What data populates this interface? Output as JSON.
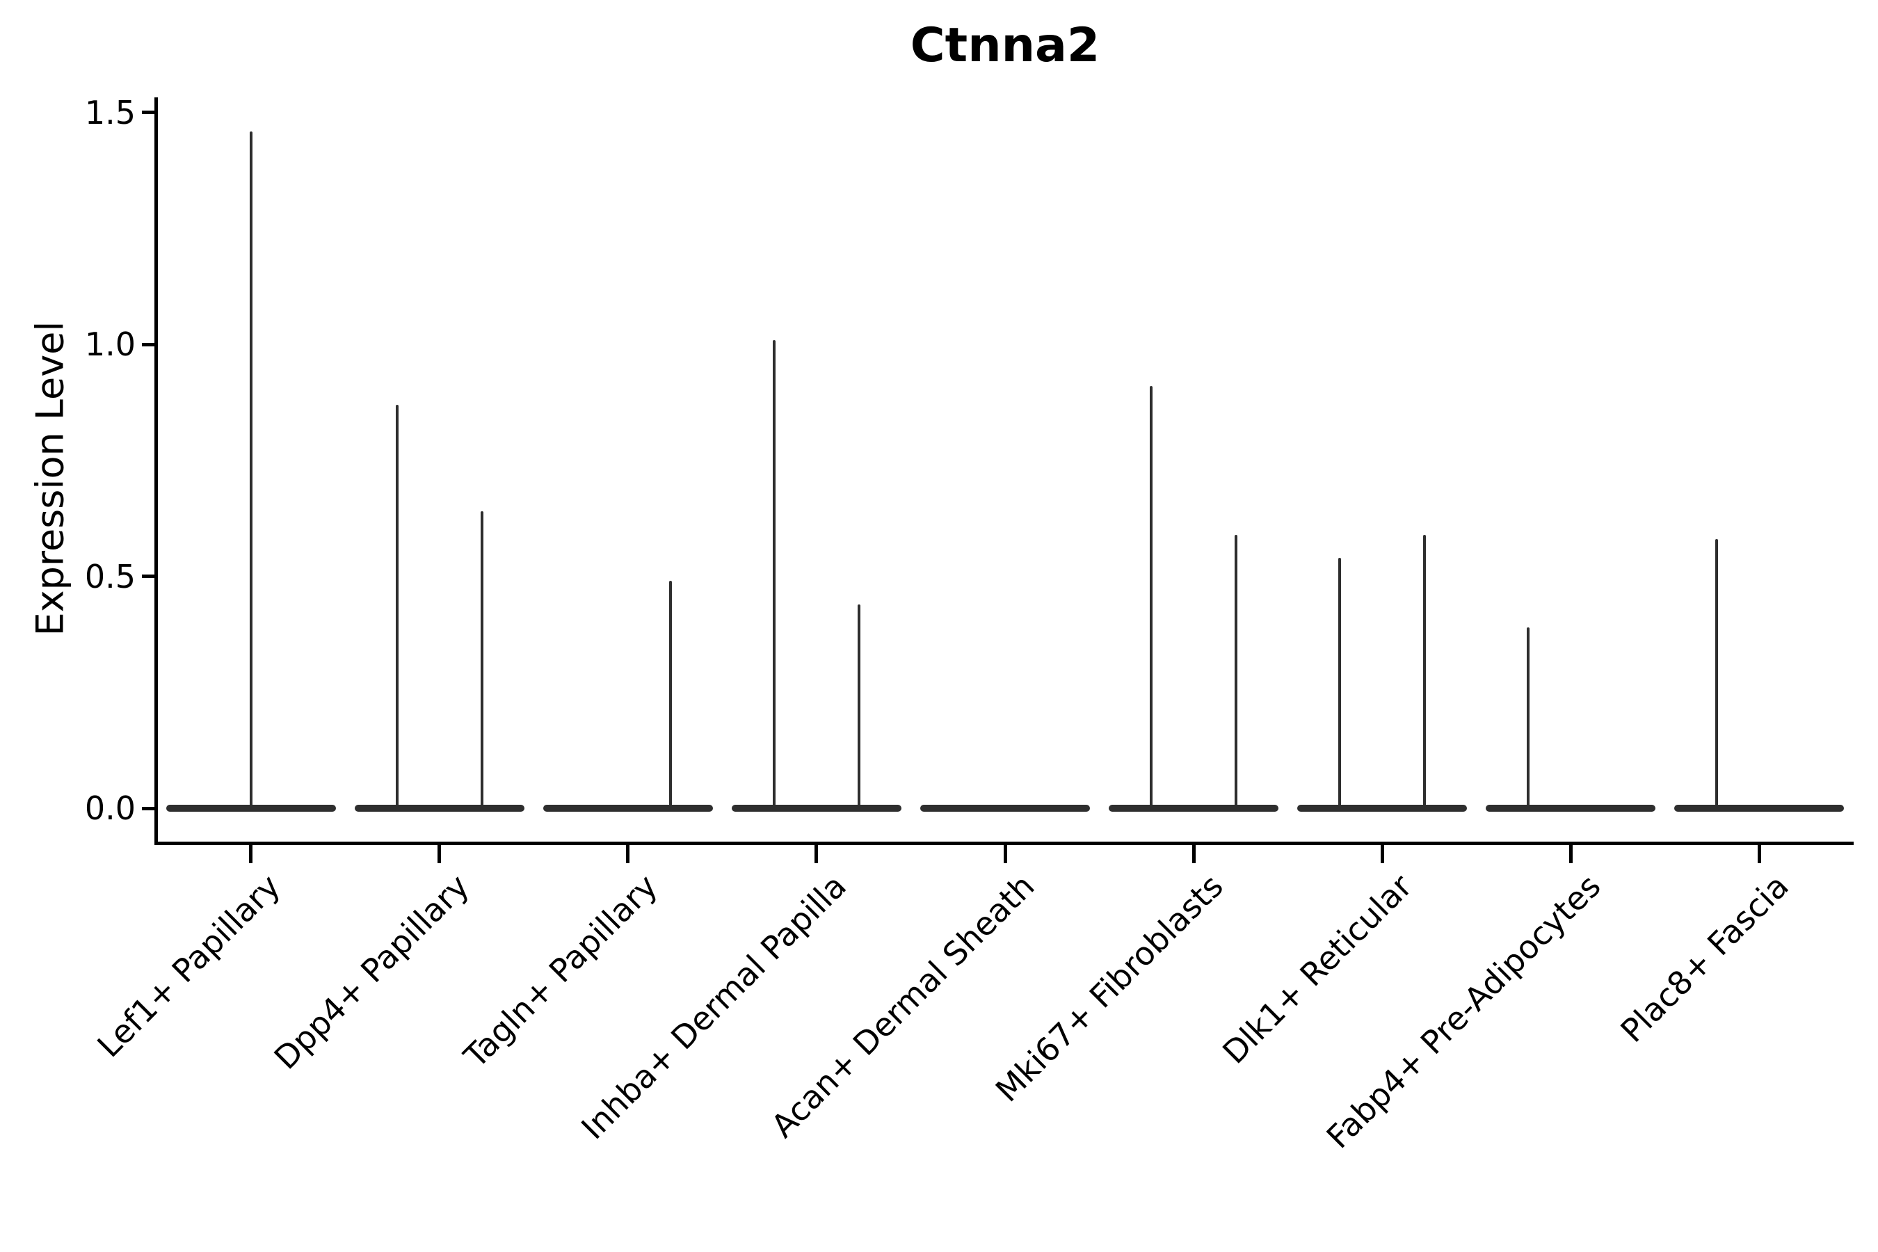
{
  "title": "Ctnna2",
  "colors": {
    "violin": "#2e2e2e",
    "axis": "#000000",
    "text": "#000000",
    "background": "#ffffff"
  },
  "chart_data": {
    "type": "violin",
    "title": "Ctnna2",
    "xlabel": "",
    "ylabel": "Expression Level",
    "ylim": [
      0,
      1.5
    ],
    "yticks": [
      0.0,
      0.5,
      1.0,
      1.5
    ],
    "grid": false,
    "legend": false,
    "x_tick_rotation": 45,
    "categories": [
      "Lef1+ Papillary",
      "Dpp4+ Papillary",
      "Tagln+ Papillary",
      "Inhba+ Dermal Papilla",
      "Acan+ Dermal Sheath",
      "Mki67+ Fibroblasts",
      "Dlk1+ Reticular",
      "Fabp4+ Pre-Adipocytes",
      "Plac8+ Fascia"
    ],
    "violins": [
      {
        "category": "Lef1+ Papillary",
        "baseline": 0.0,
        "spikes": [
          {
            "offset": "center",
            "max": 1.46
          }
        ]
      },
      {
        "category": "Dpp4+ Papillary",
        "baseline": 0.0,
        "spikes": [
          {
            "offset": "left",
            "max": 0.87
          },
          {
            "offset": "right",
            "max": 0.64
          }
        ]
      },
      {
        "category": "Tagln+ Papillary",
        "baseline": 0.0,
        "spikes": [
          {
            "offset": "right",
            "max": 0.49
          }
        ]
      },
      {
        "category": "Inhba+ Dermal Papilla",
        "baseline": 0.0,
        "spikes": [
          {
            "offset": "left",
            "max": 1.01
          },
          {
            "offset": "right",
            "max": 0.44
          }
        ]
      },
      {
        "category": "Acan+ Dermal Sheath",
        "baseline": 0.0,
        "spikes": []
      },
      {
        "category": "Mki67+ Fibroblasts",
        "baseline": 0.0,
        "spikes": [
          {
            "offset": "left",
            "max": 0.91
          },
          {
            "offset": "right",
            "max": 0.59
          }
        ]
      },
      {
        "category": "Dlk1+ Reticular",
        "baseline": 0.0,
        "spikes": [
          {
            "offset": "left",
            "max": 0.54
          },
          {
            "offset": "right",
            "max": 0.59
          }
        ]
      },
      {
        "category": "Fabp4+ Pre-Adipocytes",
        "baseline": 0.0,
        "spikes": [
          {
            "offset": "left",
            "max": 0.39
          }
        ]
      },
      {
        "category": "Plac8+ Fascia",
        "baseline": 0.0,
        "spikes": [
          {
            "offset": "left",
            "max": 0.58
          }
        ]
      }
    ]
  }
}
